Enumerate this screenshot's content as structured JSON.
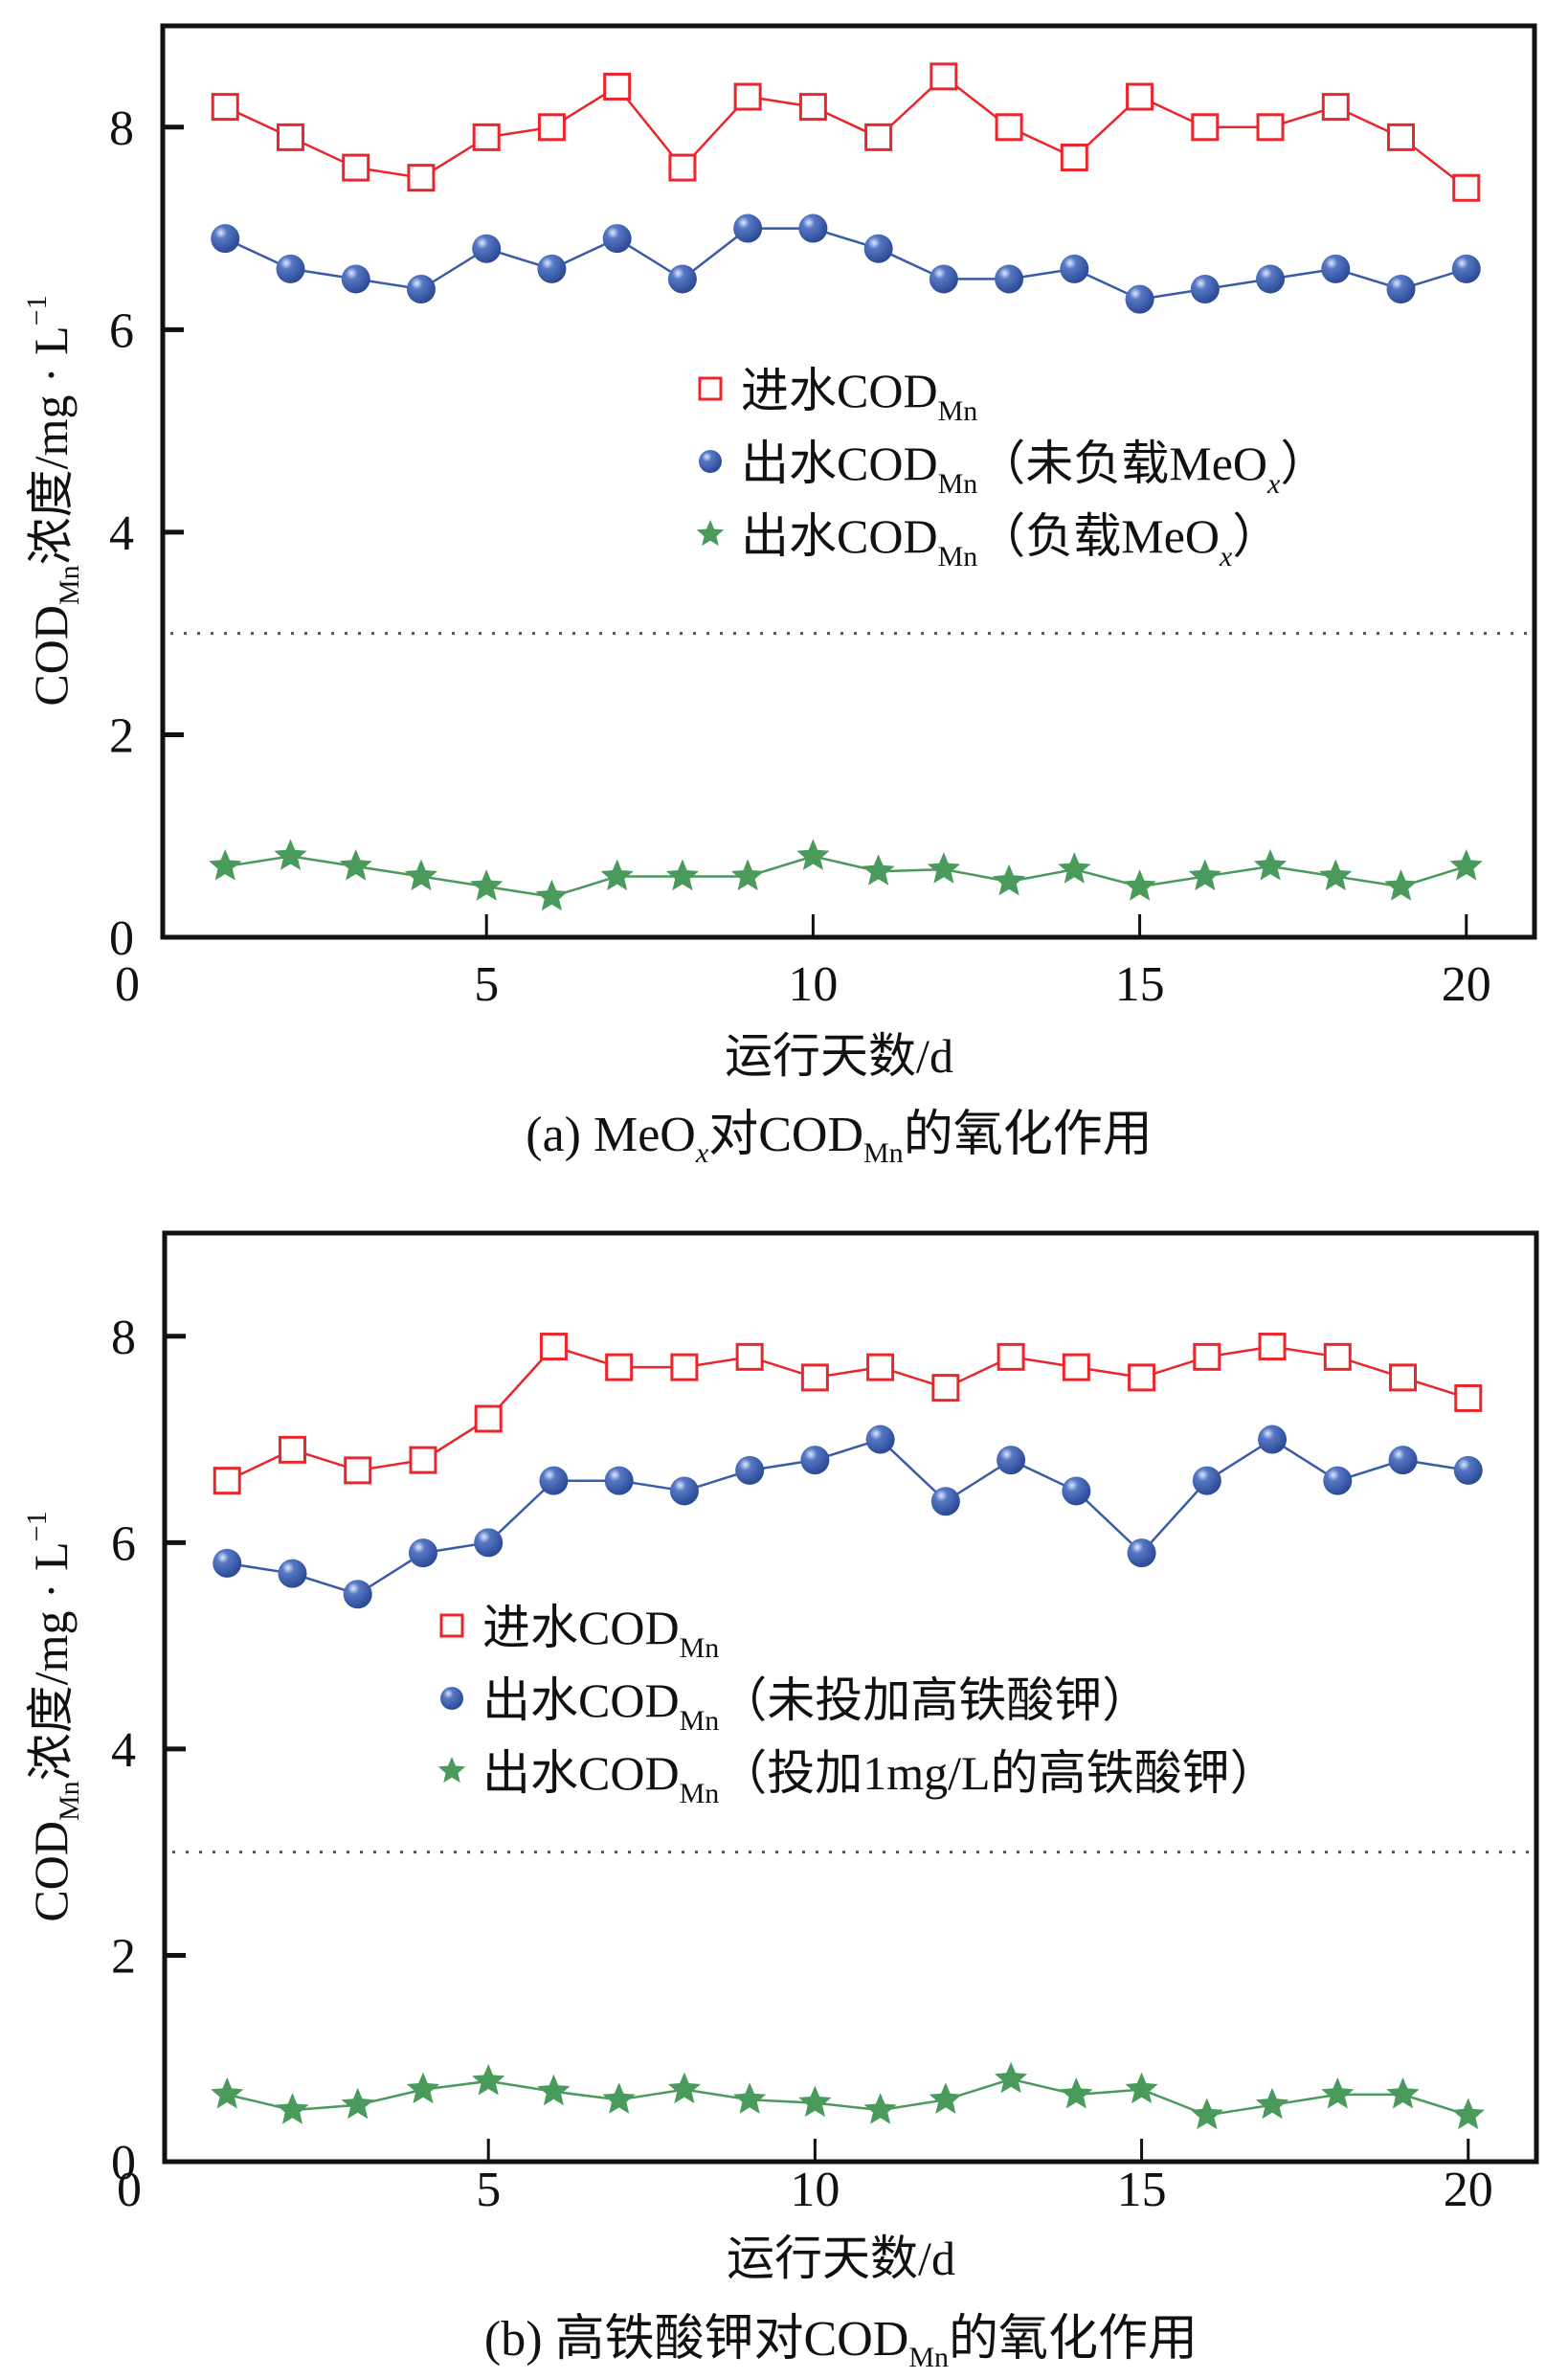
{
  "chart_data": [
    {
      "type": "line",
      "panel": "a",
      "caption": {
        "prefix": "(a) MeO",
        "sub_x": "x",
        "mid": "对COD",
        "sub_mn": "Mn",
        "suffix": "的氧化作用"
      },
      "xlabel": "运行天数/d",
      "ylabel": {
        "main": "COD",
        "sub": "Mn",
        "rest": "浓度/mg · L",
        "sup": "−1"
      },
      "xlim": [
        0,
        21
      ],
      "ylim": [
        0,
        9
      ],
      "xticks": [
        0,
        5,
        10,
        15,
        20
      ],
      "yticks": [
        0,
        2,
        4,
        6,
        8
      ],
      "reference_line": {
        "y": 3,
        "style": "dotted"
      },
      "legend_position": "center",
      "x": [
        1,
        2,
        3,
        4,
        5,
        6,
        7,
        8,
        9,
        10,
        11,
        12,
        13,
        14,
        15,
        16,
        17,
        18,
        19,
        20
      ],
      "series": [
        {
          "name": "进水COD_Mn",
          "label_main": "进水COD",
          "label_sub": "Mn",
          "label_paren": "",
          "label_x": "",
          "label_close": "",
          "marker": "square-open",
          "color": "#e8262b",
          "values": [
            8.2,
            7.9,
            7.6,
            7.5,
            7.9,
            8.0,
            8.4,
            7.6,
            8.3,
            8.2,
            7.9,
            8.5,
            8.0,
            7.7,
            8.3,
            8.0,
            8.0,
            8.2,
            7.9,
            7.4
          ]
        },
        {
          "name": "出水COD_Mn（未负载MeO_x）",
          "label_main": "出水COD",
          "label_sub": "Mn",
          "label_paren": "（未负载MeO",
          "label_x": "x",
          "label_close": "）",
          "marker": "sphere",
          "color": "#3a5ba8",
          "values": [
            6.9,
            6.6,
            6.5,
            6.4,
            6.8,
            6.6,
            6.9,
            6.5,
            7.0,
            7.0,
            6.8,
            6.5,
            6.5,
            6.6,
            6.3,
            6.4,
            6.5,
            6.6,
            6.4,
            6.6
          ]
        },
        {
          "name": "出水COD_Mn（负载MeO_x）",
          "label_main": "出水COD",
          "label_sub": "Mn",
          "label_paren": "（负载MeO",
          "label_x": "x",
          "label_close": "）",
          "marker": "star",
          "color": "#4a9a5c",
          "values": [
            0.7,
            0.8,
            0.7,
            0.6,
            0.5,
            0.4,
            0.6,
            0.6,
            0.6,
            0.8,
            0.65,
            0.67,
            0.55,
            0.67,
            0.5,
            0.6,
            0.7,
            0.6,
            0.5,
            0.7
          ]
        }
      ]
    },
    {
      "type": "line",
      "panel": "b",
      "caption": {
        "prefix": "(b) 高铁酸钾对COD",
        "sub_mn": "Mn",
        "suffix": "的氧化作用"
      },
      "xlabel": "运行天数/d",
      "ylabel": {
        "main": "COD",
        "sub": "Mn",
        "rest": "浓度/mg · L",
        "sup": "−1"
      },
      "xlim": [
        0,
        21
      ],
      "ylim": [
        0,
        9
      ],
      "xticks": [
        0,
        5,
        10,
        15,
        20
      ],
      "yticks": [
        0,
        2,
        4,
        6,
        8
      ],
      "reference_line": {
        "y": 3,
        "style": "dotted"
      },
      "legend_position": "center-left",
      "x": [
        1,
        2,
        3,
        4,
        5,
        6,
        7,
        8,
        9,
        10,
        11,
        12,
        13,
        14,
        15,
        16,
        17,
        18,
        19,
        20
      ],
      "series": [
        {
          "name": "进水COD_Mn",
          "label_main": "进水COD",
          "label_sub": "Mn",
          "label_paren": "",
          "label_x": "",
          "label_close": "",
          "marker": "square-open",
          "color": "#e8262b",
          "values": [
            6.6,
            6.9,
            6.7,
            6.8,
            7.2,
            7.9,
            7.7,
            7.7,
            7.8,
            7.6,
            7.7,
            7.5,
            7.8,
            7.7,
            7.6,
            7.8,
            7.9,
            7.8,
            7.6,
            7.4
          ]
        },
        {
          "name": "出水COD_Mn（未投加高铁酸钾）",
          "label_main": "出水COD",
          "label_sub": "Mn",
          "label_paren": "（未投加高铁酸钾）",
          "label_x": "",
          "label_close": "",
          "marker": "sphere",
          "color": "#3a5ba8",
          "values": [
            5.8,
            5.7,
            5.5,
            5.9,
            6.0,
            6.6,
            6.6,
            6.5,
            6.7,
            6.8,
            7.0,
            6.4,
            6.8,
            6.5,
            5.9,
            6.6,
            7.0,
            6.6,
            6.8,
            6.7
          ]
        },
        {
          "name": "出水COD_Mn（投加1mg/L的高铁酸钾）",
          "label_main": "出水COD",
          "label_sub": "Mn",
          "label_paren": "（投加1mg/L的高铁酸钾）",
          "label_x": "",
          "label_close": "",
          "marker": "star",
          "color": "#4a9a5c",
          "values": [
            0.65,
            0.5,
            0.55,
            0.7,
            0.78,
            0.68,
            0.6,
            0.7,
            0.6,
            0.57,
            0.5,
            0.6,
            0.8,
            0.65,
            0.7,
            0.45,
            0.55,
            0.65,
            0.65,
            0.45
          ]
        }
      ]
    }
  ]
}
